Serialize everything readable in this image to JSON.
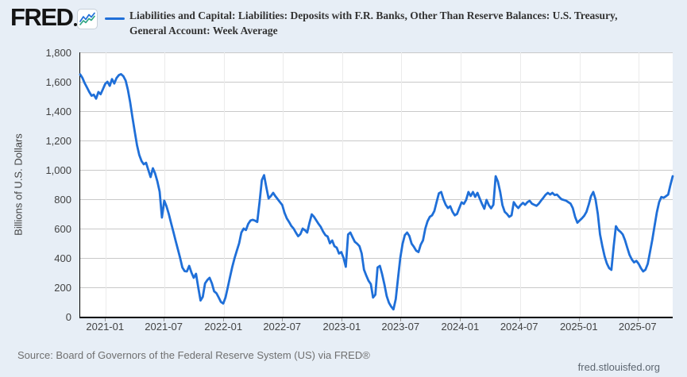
{
  "header": {
    "logo_text": "FRED",
    "title_line1": "Liabilities and Capital: Liabilities: Deposits with F.R. Banks, Other Than Reserve Balances: U.S. Treasury,",
    "title_line2": "General Account: Week Average"
  },
  "footer": {
    "source": "Source: Board of Governors of the Federal Reserve System (US) via FRED®",
    "link": "fred.stlouisfed.org"
  },
  "colors": {
    "background": "#e7eef6",
    "plot_background": "#ffffff",
    "line": "#1f6fd8",
    "icon_line2": "#2fa583",
    "gridline": "#c9c9c9",
    "axis": "#000000",
    "tick_text": "#424242",
    "title_text": "#333333",
    "source_text": "#6f6f6f"
  },
  "chart_data": {
    "type": "line",
    "title": "Liabilities and Capital: Liabilities: Deposits with F.R. Banks, Other Than Reserve Balances: U.S. Treasury, General Account: Week Average",
    "xlabel": "",
    "ylabel": "Billions of U.S. Dollars",
    "ylim": [
      0,
      1800
    ],
    "y_ticks": [
      0,
      200,
      400,
      600,
      800,
      1000,
      1200,
      1400,
      1600,
      1800
    ],
    "x_ticks": [
      "2021-01",
      "2021-07",
      "2022-01",
      "2022-07",
      "2023-01",
      "2023-07",
      "2024-01",
      "2024-07",
      "2025-01",
      "2025-07"
    ],
    "grid": true,
    "legend_position": "top",
    "series": [
      {
        "name": "Liabilities and Capital: Liabilities: Deposits with F.R. Banks, Other Than Reserve Balances: U.S. Treasury, General Account: Week Average",
        "units": "Billions of U.S. Dollars",
        "frequency": "Weekly",
        "start_date": "2020-10-14",
        "interval_days": 7,
        "values": [
          1650,
          1625,
          1590,
          1560,
          1530,
          1505,
          1512,
          1485,
          1530,
          1515,
          1550,
          1585,
          1600,
          1572,
          1618,
          1588,
          1625,
          1645,
          1652,
          1638,
          1608,
          1546,
          1460,
          1360,
          1262,
          1168,
          1102,
          1060,
          1038,
          1048,
          1000,
          951,
          1011,
          975,
          920,
          852,
          675,
          790,
          752,
          700,
          640,
          580,
          520,
          460,
          400,
          335,
          310,
          308,
          346,
          300,
          265,
          292,
          200,
          110,
          135,
          227,
          250,
          265,
          227,
          173,
          160,
          130,
          100,
          90,
          130,
          200,
          270,
          340,
          400,
          450,
          500,
          573,
          600,
          590,
          632,
          655,
          660,
          654,
          645,
          780,
          930,
          964,
          880,
          805,
          822,
          843,
          820,
          800,
          780,
          760,
          708,
          670,
          645,
          618,
          600,
          573,
          548,
          562,
          600,
          589,
          573,
          640,
          697,
          680,
          655,
          632,
          610,
          580,
          555,
          546,
          500,
          519,
          480,
          470,
          430,
          440,
          400,
          340,
          560,
          573,
          540,
          510,
          497,
          480,
          430,
          320,
          281,
          245,
          222,
          130,
          150,
          335,
          346,
          290,
          220,
          140,
          95,
          68,
          50,
          120,
          265,
          400,
          497,
          555,
          573,
          550,
          497,
          475,
          450,
          440,
          490,
          520,
          600,
          650,
          680,
          690,
          720,
          780,
          840,
          849,
          800,
          762,
          740,
          752,
          714,
          690,
          700,
          740,
          779,
          768,
          795,
          849,
          822,
          849,
          816,
          843,
          805,
          768,
          735,
          795,
          760,
          738,
          762,
          957,
          920,
          850,
          760,
          714,
          700,
          680,
          690,
          780,
          755,
          740,
          760,
          775,
          762,
          780,
          789,
          770,
          762,
          755,
          770,
          790,
          810,
          830,
          843,
          832,
          843,
          828,
          832,
          815,
          800,
          795,
          790,
          780,
          770,
          740,
          680,
          640,
          655,
          670,
          687,
          714,
          762,
          820,
          849,
          800,
          700,
          560,
          480,
          410,
          362,
          330,
          319,
          480,
          616,
          590,
          578,
          560,
          520,
          470,
          420,
          389,
          370,
          380,
          360,
          330,
          308,
          320,
          360,
          440,
          524,
          616,
          710,
          780,
          815,
          810,
          820,
          832,
          897,
          957
        ]
      }
    ]
  }
}
